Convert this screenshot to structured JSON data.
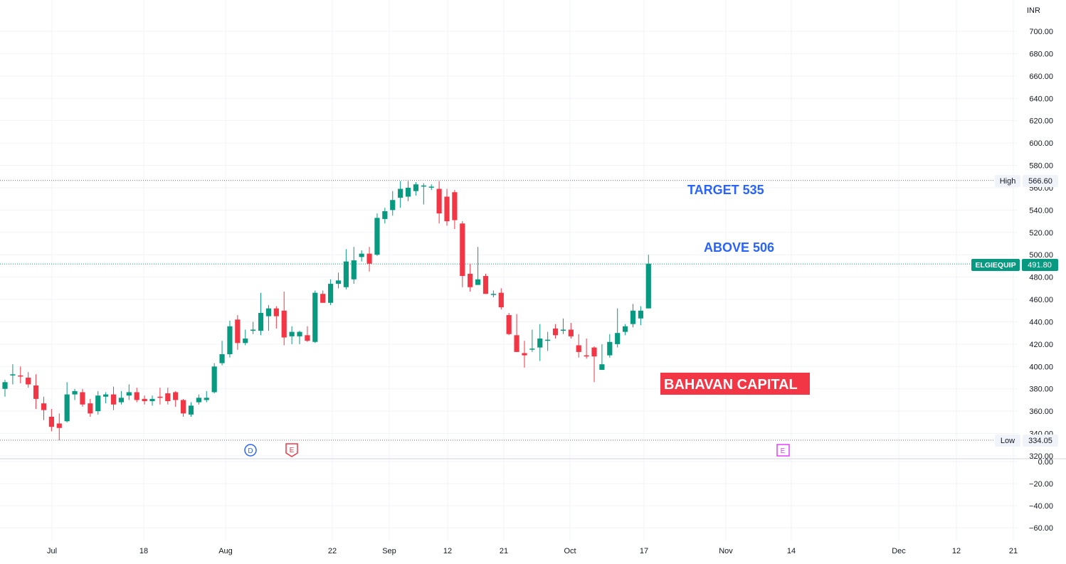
{
  "currency": "INR",
  "price_scale_ticks": [
    "700.00",
    "680.00",
    "660.00",
    "640.00",
    "620.00",
    "600.00",
    "580.00",
    "560.00",
    "540.00",
    "520.00",
    "500.00",
    "480.00",
    "460.00",
    "440.00",
    "420.00",
    "400.00",
    "380.00",
    "360.00",
    "340.00",
    "320.00"
  ],
  "volume_scale_ticks": [
    "0.00",
    "−20.00",
    "−40.00",
    "−60.00"
  ],
  "time_axis": [
    {
      "label": "Jul",
      "x": 73
    },
    {
      "label": "18",
      "x": 202
    },
    {
      "label": "Aug",
      "x": 317
    },
    {
      "label": "22",
      "x": 467
    },
    {
      "label": "Sep",
      "x": 547
    },
    {
      "label": "12",
      "x": 629
    },
    {
      "label": "21",
      "x": 708
    },
    {
      "label": "Oct",
      "x": 801
    },
    {
      "label": "17",
      "x": 905
    },
    {
      "label": "Nov",
      "x": 1020
    },
    {
      "label": "14",
      "x": 1112
    },
    {
      "label": "Dec",
      "x": 1263
    },
    {
      "label": "12",
      "x": 1344
    },
    {
      "label": "21",
      "x": 1424
    }
  ],
  "high": {
    "label": "High",
    "value": "566.60"
  },
  "low": {
    "label": "Low",
    "value": "334.05"
  },
  "last": {
    "symbol": "ELGIEQUIP",
    "value": "491.80"
  },
  "annotations": {
    "target": "TARGET 535",
    "above": "ABOVE 506",
    "brand": "BAHAVAN CAPITAL"
  },
  "event_markers": [
    {
      "letter": "D",
      "type": "dividend"
    },
    {
      "letter": "E",
      "type": "earnings"
    },
    {
      "letter": "E",
      "type": "earnings-upcoming"
    }
  ],
  "colors": {
    "up": "#089981",
    "down": "#f23645",
    "grid": "#f0f3fa",
    "axis_text": "#131722",
    "annotation_blue": "#2962ff",
    "brand_bg": "#f23645",
    "dividend": "#2962ff",
    "earnings": "#f23645",
    "earnings_future": "#e040fb"
  },
  "chart_data": {
    "type": "candlestick",
    "symbol": "ELGIEQUIP",
    "currency": "INR",
    "high": 566.6,
    "low": 334.05,
    "last": 491.8,
    "ylim": [
      316,
      708
    ],
    "candles": [
      {
        "o": 380,
        "h": 388,
        "l": 373,
        "c": 386
      },
      {
        "o": 392,
        "h": 402,
        "l": 384,
        "c": 393
      },
      {
        "o": 392,
        "h": 400,
        "l": 385,
        "c": 391
      },
      {
        "o": 390,
        "h": 395,
        "l": 381,
        "c": 384
      },
      {
        "o": 383,
        "h": 393,
        "l": 362,
        "c": 371
      },
      {
        "o": 367,
        "h": 373,
        "l": 352,
        "c": 361
      },
      {
        "o": 355,
        "h": 362,
        "l": 342,
        "c": 346
      },
      {
        "o": 349,
        "h": 358,
        "l": 334,
        "c": 345
      },
      {
        "o": 351,
        "h": 386,
        "l": 350,
        "c": 375
      },
      {
        "o": 375,
        "h": 380,
        "l": 370,
        "c": 378
      },
      {
        "o": 377,
        "h": 380,
        "l": 364,
        "c": 366
      },
      {
        "o": 367,
        "h": 371,
        "l": 355,
        "c": 358
      },
      {
        "o": 360,
        "h": 378,
        "l": 357,
        "c": 374
      },
      {
        "o": 373,
        "h": 377,
        "l": 367,
        "c": 375
      },
      {
        "o": 375,
        "h": 382,
        "l": 361,
        "c": 366
      },
      {
        "o": 368,
        "h": 378,
        "l": 366,
        "c": 372
      },
      {
        "o": 374,
        "h": 384,
        "l": 370,
        "c": 377
      },
      {
        "o": 377,
        "h": 381,
        "l": 368,
        "c": 370
      },
      {
        "o": 371,
        "h": 374,
        "l": 366,
        "c": 369
      },
      {
        "o": 369,
        "h": 374,
        "l": 365,
        "c": 371
      },
      {
        "o": 373,
        "h": 381,
        "l": 366,
        "c": 372
      },
      {
        "o": 376,
        "h": 381,
        "l": 366,
        "c": 369
      },
      {
        "o": 377,
        "h": 378,
        "l": 364,
        "c": 370
      },
      {
        "o": 370,
        "h": 371,
        "l": 355,
        "c": 358
      },
      {
        "o": 357,
        "h": 368,
        "l": 355,
        "c": 365
      },
      {
        "o": 368,
        "h": 375,
        "l": 366,
        "c": 372
      },
      {
        "o": 370,
        "h": 378,
        "l": 368,
        "c": 372
      },
      {
        "o": 377,
        "h": 403,
        "l": 376,
        "c": 400
      },
      {
        "o": 403,
        "h": 423,
        "l": 401,
        "c": 411
      },
      {
        "o": 411,
        "h": 441,
        "l": 408,
        "c": 436
      },
      {
        "o": 442,
        "h": 446,
        "l": 415,
        "c": 421
      },
      {
        "o": 421,
        "h": 433,
        "l": 419,
        "c": 425
      },
      {
        "o": 432,
        "h": 440,
        "l": 429,
        "c": 433
      },
      {
        "o": 432,
        "h": 466,
        "l": 428,
        "c": 448
      },
      {
        "o": 445,
        "h": 455,
        "l": 432,
        "c": 452
      },
      {
        "o": 452,
        "h": 454,
        "l": 434,
        "c": 445
      },
      {
        "o": 450,
        "h": 467,
        "l": 419,
        "c": 426
      },
      {
        "o": 427,
        "h": 436,
        "l": 420,
        "c": 431
      },
      {
        "o": 427,
        "h": 432,
        "l": 420,
        "c": 431
      },
      {
        "o": 428,
        "h": 436,
        "l": 422,
        "c": 423
      },
      {
        "o": 422,
        "h": 468,
        "l": 421,
        "c": 466
      },
      {
        "o": 465,
        "h": 468,
        "l": 458,
        "c": 457
      },
      {
        "o": 457,
        "h": 478,
        "l": 455,
        "c": 474
      },
      {
        "o": 474,
        "h": 484,
        "l": 470,
        "c": 477
      },
      {
        "o": 471,
        "h": 505,
        "l": 469,
        "c": 494
      },
      {
        "o": 478,
        "h": 507,
        "l": 474,
        "c": 495
      },
      {
        "o": 498,
        "h": 504,
        "l": 494,
        "c": 501
      },
      {
        "o": 501,
        "h": 507,
        "l": 485,
        "c": 492
      },
      {
        "o": 500,
        "h": 537,
        "l": 499,
        "c": 533
      },
      {
        "o": 532,
        "h": 542,
        "l": 528,
        "c": 539
      },
      {
        "o": 540,
        "h": 557,
        "l": 535,
        "c": 549
      },
      {
        "o": 551,
        "h": 566,
        "l": 542,
        "c": 559
      },
      {
        "o": 552,
        "h": 566,
        "l": 548,
        "c": 560
      },
      {
        "o": 557,
        "h": 565,
        "l": 553,
        "c": 563
      },
      {
        "o": 561,
        "h": 564,
        "l": 545,
        "c": 562
      },
      {
        "o": 561,
        "h": 563,
        "l": 558,
        "c": 561
      },
      {
        "o": 559,
        "h": 566,
        "l": 528,
        "c": 537
      },
      {
        "o": 552,
        "h": 559,
        "l": 526,
        "c": 530
      },
      {
        "o": 556,
        "h": 558,
        "l": 523,
        "c": 531
      },
      {
        "o": 528,
        "h": 530,
        "l": 471,
        "c": 481
      },
      {
        "o": 483,
        "h": 492,
        "l": 467,
        "c": 471
      },
      {
        "o": 473,
        "h": 507,
        "l": 473,
        "c": 478
      },
      {
        "o": 481,
        "h": 483,
        "l": 465,
        "c": 465
      },
      {
        "o": 465,
        "h": 468,
        "l": 462,
        "c": 465
      },
      {
        "o": 466,
        "h": 470,
        "l": 451,
        "c": 453
      },
      {
        "o": 446,
        "h": 448,
        "l": 428,
        "c": 429
      },
      {
        "o": 428,
        "h": 447,
        "l": 415,
        "c": 413
      },
      {
        "o": 412,
        "h": 423,
        "l": 399,
        "c": 410
      },
      {
        "o": 416,
        "h": 433,
        "l": 413,
        "c": 416
      },
      {
        "o": 417,
        "h": 438,
        "l": 405,
        "c": 425
      },
      {
        "o": 423,
        "h": 431,
        "l": 414,
        "c": 424
      },
      {
        "o": 434,
        "h": 438,
        "l": 425,
        "c": 428
      },
      {
        "o": 432,
        "h": 443,
        "l": 429,
        "c": 433
      },
      {
        "o": 433,
        "h": 439,
        "l": 425,
        "c": 427
      },
      {
        "o": 419,
        "h": 429,
        "l": 408,
        "c": 413
      },
      {
        "o": 410,
        "h": 425,
        "l": 407,
        "c": 409
      },
      {
        "o": 417,
        "h": 418,
        "l": 386,
        "c": 409
      },
      {
        "o": 397,
        "h": 420,
        "l": 397,
        "c": 402
      },
      {
        "o": 410,
        "h": 429,
        "l": 408,
        "c": 422
      },
      {
        "o": 420,
        "h": 452,
        "l": 417,
        "c": 430
      },
      {
        "o": 431,
        "h": 438,
        "l": 428,
        "c": 436
      },
      {
        "o": 438,
        "h": 456,
        "l": 435,
        "c": 450
      },
      {
        "o": 443,
        "h": 454,
        "l": 437,
        "c": 450
      },
      {
        "o": 452,
        "h": 500,
        "l": 452,
        "c": 492
      }
    ]
  }
}
